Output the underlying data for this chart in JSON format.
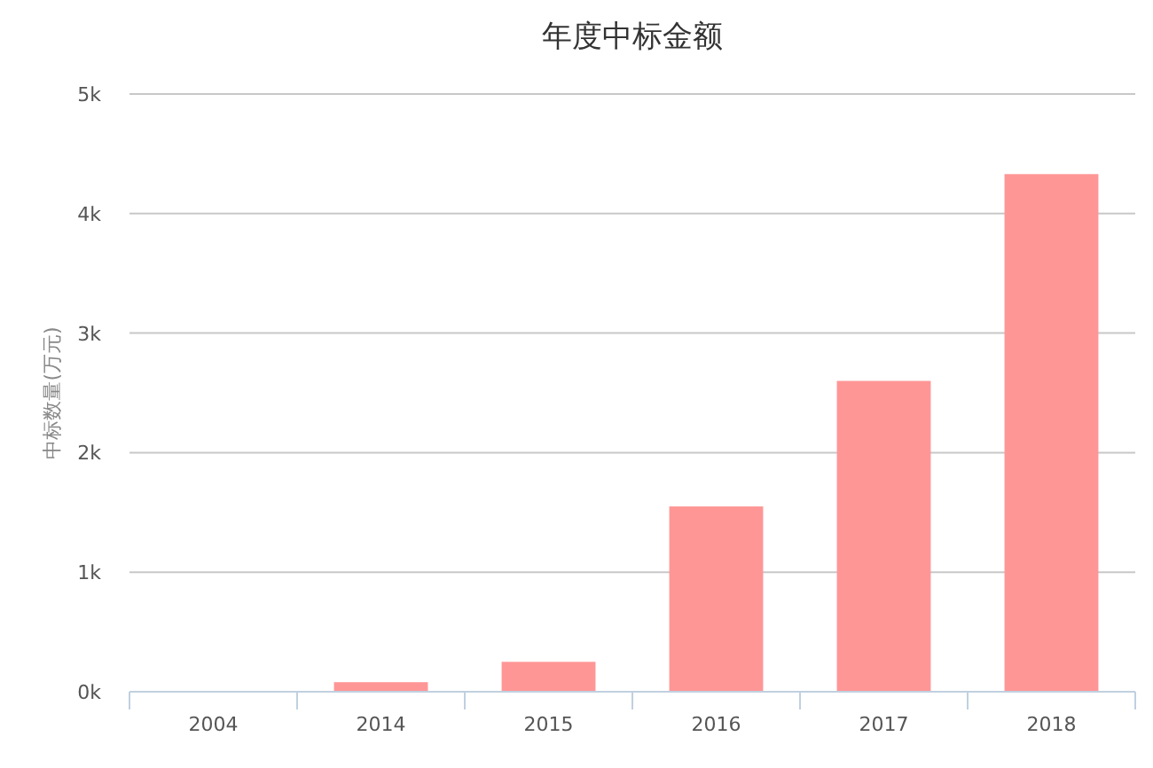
{
  "chart_data": {
    "type": "bar",
    "title": "年度中标金额",
    "ylabel": "中标数量(万元)",
    "categories": [
      "2004",
      "2014",
      "2015",
      "2016",
      "2017",
      "2018"
    ],
    "values": [
      0,
      80,
      250,
      1550,
      2600,
      4330
    ],
    "color": "#ff9696",
    "ylim": [
      0,
      5000
    ],
    "yticks": [
      {
        "value": 0,
        "label": "0k"
      },
      {
        "value": 1000,
        "label": "1k"
      },
      {
        "value": 2000,
        "label": "2k"
      },
      {
        "value": 3000,
        "label": "3k"
      },
      {
        "value": 4000,
        "label": "4k"
      },
      {
        "value": 5000,
        "label": "5k"
      }
    ],
    "grid": "y"
  }
}
